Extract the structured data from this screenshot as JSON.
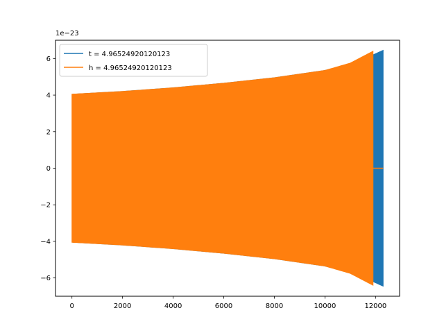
{
  "chart_data": {
    "type": "line",
    "title": "",
    "xlabel": "",
    "ylabel": "",
    "y_offset_label": "1e−23",
    "xlim": [
      -650,
      12950
    ],
    "ylim": [
      -7.0,
      7.0
    ],
    "x_ticks": [
      0,
      2000,
      4000,
      6000,
      8000,
      10000,
      12000
    ],
    "x_tick_labels": [
      "0",
      "2000",
      "4000",
      "6000",
      "8000",
      "10000",
      "12000"
    ],
    "y_ticks": [
      -6,
      -4,
      -2,
      0,
      2,
      4,
      6
    ],
    "y_tick_labels": [
      "−6",
      "−4",
      "−2",
      "0",
      "2",
      "4",
      "6"
    ],
    "grid": false,
    "legend_position": "top-left",
    "series": [
      {
        "name": "t = 4.96524920120123",
        "color": "#1f77b4",
        "zero_start": 0,
        "zero_end": 40,
        "onset": 40,
        "end": 12300,
        "envelope_x": [
          40,
          2000,
          4000,
          6000,
          8000,
          10000,
          11000,
          11900,
          12300
        ],
        "envelope_y": [
          4.05,
          4.2,
          4.4,
          4.65,
          4.95,
          5.35,
          5.7,
          6.2,
          6.45
        ]
      },
      {
        "name": "h = 4.96524920120123",
        "color": "#ff7f0e",
        "onset": 0,
        "end": 11900,
        "envelope_x": [
          0,
          2000,
          4000,
          6000,
          8000,
          10000,
          11000,
          11900
        ],
        "envelope_y": [
          4.05,
          4.2,
          4.4,
          4.65,
          4.95,
          5.35,
          5.75,
          6.4
        ],
        "zero_tail_start": 11900,
        "zero_tail_end": 12300
      }
    ]
  }
}
